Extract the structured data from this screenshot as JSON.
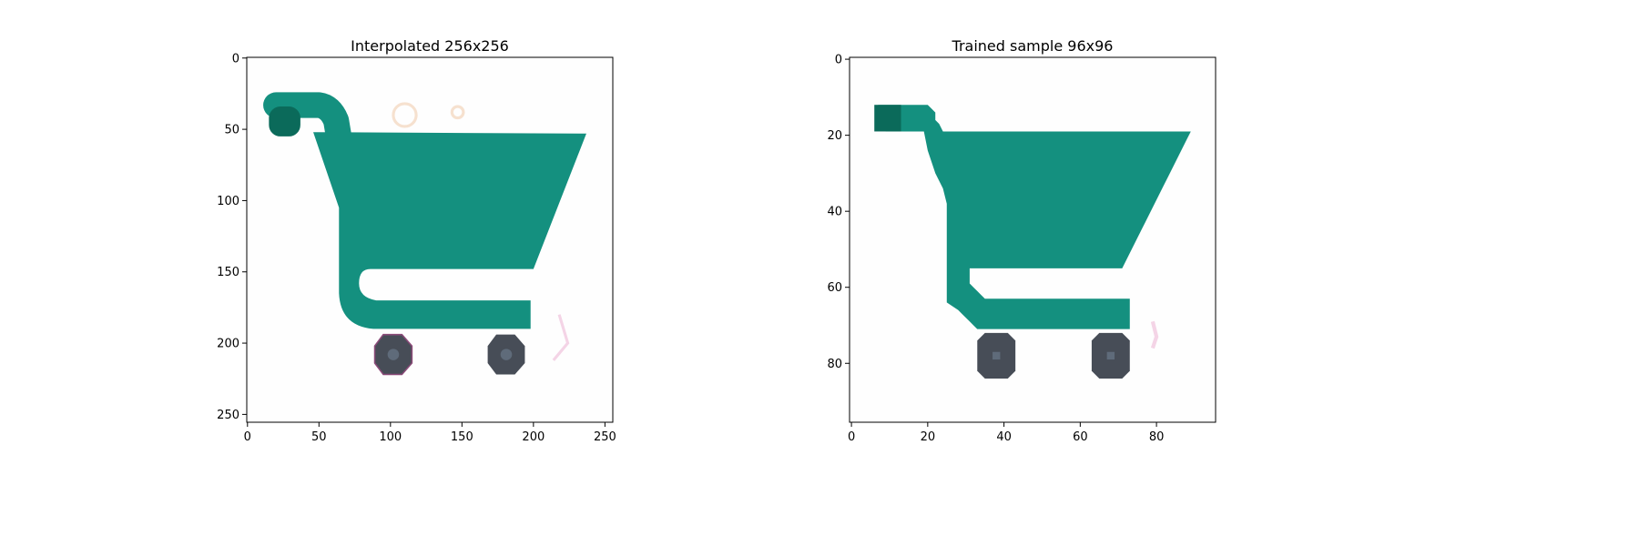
{
  "chart_data": [
    {
      "type": "image",
      "title": "Interpolated 256x256",
      "xlabel": "",
      "ylabel": "",
      "xlim": [
        -0.5,
        255.5
      ],
      "ylim": [
        255.5,
        -0.5
      ],
      "x_ticks": [
        0,
        50,
        100,
        150,
        200,
        250
      ],
      "y_ticks": [
        0,
        50,
        100,
        150,
        200,
        250
      ],
      "grid": false,
      "image_content": "teal shopping cart icon with two dark grey wheels on white background (smooth)",
      "colors": {
        "cart": "#14907f",
        "handle_tip": "#0b6a5a",
        "wheel": "#474d57",
        "wheel_hub": "#5f6b7a"
      }
    },
    {
      "type": "image",
      "title": "Trained sample 96x96",
      "xlabel": "",
      "ylabel": "",
      "xlim": [
        -0.5,
        95.5
      ],
      "ylim": [
        95.5,
        -0.5
      ],
      "x_ticks": [
        0,
        20,
        40,
        60,
        80
      ],
      "y_ticks": [
        0,
        20,
        40,
        60,
        80
      ],
      "grid": false,
      "image_content": "teal shopping cart icon with two dark grey wheels on white background (pixelated)",
      "colors": {
        "cart": "#14907f",
        "handle_tip": "#0b6a5a",
        "wheel": "#474d57",
        "wheel_hub": "#5f6b7a"
      }
    }
  ]
}
